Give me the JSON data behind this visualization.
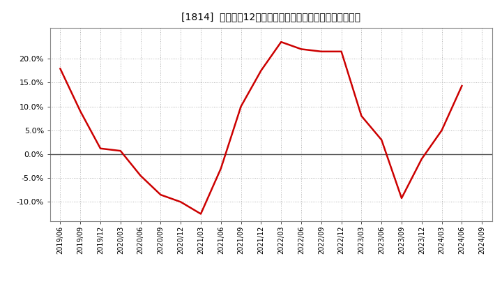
{
  "title": "[1814]  売上高の12か月移動合計の対前年同期増減率の推移",
  "line_color": "#cc0000",
  "background_color": "#ffffff",
  "plot_bg_color": "#ffffff",
  "grid_color": "#aaaaaa",
  "zero_line_color": "#555555",
  "dates": [
    "2019/06",
    "2019/09",
    "2019/12",
    "2020/03",
    "2020/06",
    "2020/09",
    "2020/12",
    "2021/03",
    "2021/06",
    "2021/09",
    "2021/12",
    "2022/03",
    "2022/06",
    "2022/09",
    "2022/12",
    "2023/03",
    "2023/06",
    "2023/09",
    "2023/12",
    "2024/03",
    "2024/06",
    "2024/09"
  ],
  "values": [
    0.179,
    0.09,
    0.012,
    0.007,
    -0.045,
    -0.085,
    -0.1,
    -0.125,
    -0.03,
    0.1,
    0.175,
    0.235,
    0.22,
    0.215,
    0.215,
    0.08,
    0.03,
    -0.092,
    -0.01,
    0.05,
    0.143,
    null
  ],
  "yticks": [
    -0.1,
    -0.05,
    0.0,
    0.05,
    0.1,
    0.15,
    0.2
  ],
  "ylim": [
    -0.14,
    0.265
  ],
  "title_fontsize": 10
}
